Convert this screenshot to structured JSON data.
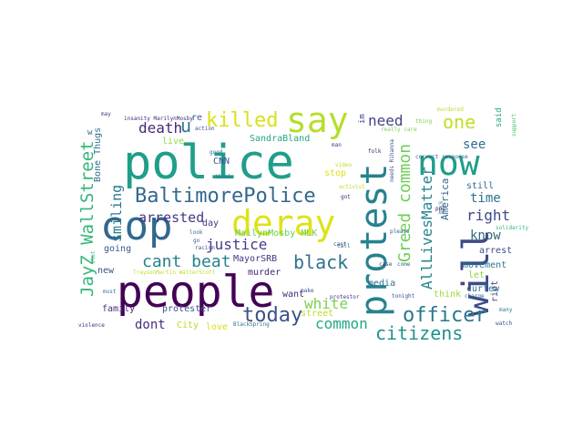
{
  "word_cloud": {
    "words": [
      {
        "text": "police",
        "color": "#1f9e89"
      },
      {
        "text": "people",
        "color": "#440154"
      },
      {
        "text": "cop",
        "color": "#31688e"
      },
      {
        "text": "deray",
        "color": "#dde318"
      },
      {
        "text": "protest",
        "color": "#26828e"
      },
      {
        "text": "now",
        "color": "#1f9e89"
      },
      {
        "text": "say",
        "color": "#b5de2b"
      },
      {
        "text": "will",
        "color": "#3e4a89"
      },
      {
        "text": "BaltimorePolice",
        "color": "#31688e"
      },
      {
        "text": "officer",
        "color": "#2a788e"
      },
      {
        "text": "killed",
        "color": "#d8e219"
      },
      {
        "text": "today",
        "color": "#3b528b"
      },
      {
        "text": "JayZ WallStreet",
        "color": "#35b779"
      },
      {
        "text": "Greed common",
        "color": "#6ece58"
      },
      {
        "text": "black",
        "color": "#2c728e"
      },
      {
        "text": "citizens",
        "color": "#21918c"
      },
      {
        "text": "common",
        "color": "#22a884"
      },
      {
        "text": "cant beat",
        "color": "#26828e"
      },
      {
        "text": "death",
        "color": "#482878"
      },
      {
        "text": "u",
        "color": "#2a788e"
      },
      {
        "text": "one",
        "color": "#bddf26"
      },
      {
        "text": "need",
        "color": "#414487"
      },
      {
        "text": "AllLivesMatter",
        "color": "#25858e"
      },
      {
        "text": "justice",
        "color": "#433e85"
      },
      {
        "text": "white",
        "color": "#7ad151"
      },
      {
        "text": "smiling",
        "color": "#2a788e"
      },
      {
        "text": "arrested",
        "color": "#443983"
      },
      {
        "text": "dont",
        "color": "#472d7b"
      },
      {
        "text": "right",
        "color": "#3e4a89"
      },
      {
        "text": "time",
        "color": "#2d708e"
      },
      {
        "text": "know",
        "color": "#30697e"
      },
      {
        "text": "see",
        "color": "#2f6c8e"
      },
      {
        "text": "America",
        "color": "#35608d"
      },
      {
        "text": "Bone Thugs",
        "color": "#2e6e8e"
      },
      {
        "text": "SandraBland",
        "color": "#21a685"
      },
      {
        "text": "CNN",
        "color": "#3b528b"
      },
      {
        "text": "MailynMosby MLK",
        "color": "#6ccd5a"
      },
      {
        "text": "MayorSRB",
        "color": "#453781"
      },
      {
        "text": "murder",
        "color": "#482475"
      },
      {
        "text": "want",
        "color": "#472c7a"
      },
      {
        "text": "media",
        "color": "#2c728e"
      },
      {
        "text": "stop",
        "color": "#dde318"
      },
      {
        "text": "street",
        "color": "#bade28"
      },
      {
        "text": "love",
        "color": "#d2e21b"
      },
      {
        "text": "City",
        "color": "#b8de29"
      },
      {
        "text": "protester",
        "color": "#3b528b"
      },
      {
        "text": "family",
        "color": "#46337e"
      },
      {
        "text": "new",
        "color": "#3a548c"
      },
      {
        "text": "going",
        "color": "#38598c"
      },
      {
        "text": "day",
        "color": "#443a83"
      },
      {
        "text": "live",
        "color": "#95d840"
      },
      {
        "text": "movement",
        "color": "#2a768e"
      },
      {
        "text": "arrest",
        "color": "#3e4c8a"
      },
      {
        "text": "let",
        "color": "#8bd646"
      },
      {
        "text": "curfew",
        "color": "#2c728e"
      },
      {
        "text": "think",
        "color": "#9fda3a"
      },
      {
        "text": "riot",
        "color": "#3f4889"
      },
      {
        "text": "still",
        "color": "#31688e"
      },
      {
        "text": "said",
        "color": "#25ac82"
      },
      {
        "text": "re",
        "color": "#365d8d"
      },
      {
        "text": "w",
        "color": "#2e6f8e"
      },
      {
        "text": "im",
        "color": "#3e4989"
      },
      {
        "text": "insanity MarilynMosby",
        "color": "#482878"
      },
      {
        "text": "thing",
        "color": "#7ad151"
      },
      {
        "text": "action",
        "color": "#3b528b"
      },
      {
        "text": "murdered",
        "color": "#b8de29"
      },
      {
        "text": "support",
        "color": "#4ac16d"
      },
      {
        "text": "may",
        "color": "#443a83"
      },
      {
        "text": "shot",
        "color": "#35b779"
      },
      {
        "text": "good",
        "color": "#2c728e"
      },
      {
        "text": "man",
        "color": "#443983"
      },
      {
        "text": "folk",
        "color": "#482475"
      },
      {
        "text": "really care",
        "color": "#7ad151"
      },
      {
        "text": "needs Rihanna",
        "color": "#3b528b"
      },
      {
        "text": "correct response",
        "color": "#31688e"
      },
      {
        "text": "solidarity",
        "color": "#35b779"
      },
      {
        "text": "video",
        "color": "#bddf26"
      },
      {
        "text": "activist",
        "color": "#b8de29"
      },
      {
        "text": "please",
        "color": "#365d8d"
      },
      {
        "text": "thank",
        "color": "#2a788e"
      },
      {
        "text": "got",
        "color": "#482878"
      },
      {
        "text": "cant",
        "color": "#3e4a89"
      },
      {
        "text": "call",
        "color": "#2e6e8e"
      },
      {
        "text": "case",
        "color": "#433e85"
      },
      {
        "text": "come",
        "color": "#31688e"
      },
      {
        "text": "tonight",
        "color": "#3b528b"
      },
      {
        "text": "ppl",
        "color": "#440154"
      },
      {
        "text": "back",
        "color": "#21918c"
      },
      {
        "text": "charge",
        "color": "#31688e"
      },
      {
        "text": "many",
        "color": "#2a788e"
      },
      {
        "text": "watch",
        "color": "#3e4a89"
      },
      {
        "text": "TraysonMartin WalterScott",
        "color": "#bddf26"
      },
      {
        "text": "racism",
        "color": "#3b528b"
      },
      {
        "text": "look",
        "color": "#2c728e"
      },
      {
        "text": "go",
        "color": "#365d8d"
      },
      {
        "text": "must",
        "color": "#2a788e"
      },
      {
        "text": "protestor",
        "color": "#443983"
      },
      {
        "text": "BlackSpring",
        "color": "#2c728e"
      },
      {
        "text": "violence",
        "color": "#482878"
      },
      {
        "text": "make",
        "color": "#3b528b"
      }
    ]
  }
}
